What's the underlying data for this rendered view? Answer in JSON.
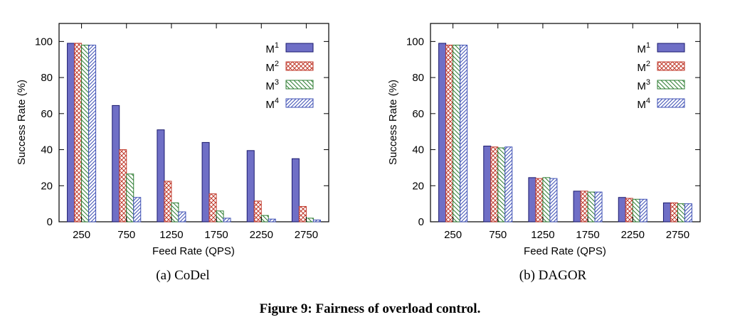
{
  "chart_data": [
    {
      "type": "bar",
      "caption": "(a) CoDel",
      "xlabel": "Feed Rate (QPS)",
      "ylabel": "Success Rate (%)",
      "ylim": [
        0,
        110
      ],
      "yticks": [
        0,
        20,
        40,
        60,
        80,
        100
      ],
      "categories": [
        "250",
        "750",
        "1250",
        "1750",
        "2250",
        "2750"
      ],
      "legend_position": "top-right",
      "series": [
        {
          "name": "M1",
          "label_base": "M",
          "label_sup": "1",
          "pattern": "solid",
          "color": "#6f6fc6",
          "values": [
            99,
            64.5,
            51,
            44,
            39.5,
            35
          ]
        },
        {
          "name": "M2",
          "label_base": "M",
          "label_sup": "2",
          "pattern": "crosshatch",
          "color": "#c0392b",
          "values": [
            99,
            40,
            22.5,
            15.5,
            11.5,
            8.5
          ]
        },
        {
          "name": "M3",
          "label_base": "M",
          "label_sup": "3",
          "pattern": "diagonal-back",
          "color": "#2e7d32",
          "values": [
            98,
            26.5,
            10.5,
            6,
            3.5,
            2
          ]
        },
        {
          "name": "M4",
          "label_base": "M",
          "label_sup": "4",
          "pattern": "diagonal-forward",
          "color": "#3f51b5",
          "values": [
            98,
            13.5,
            5.5,
            2,
            1.5,
            1
          ]
        }
      ]
    },
    {
      "type": "bar",
      "caption": "(b) DAGOR",
      "xlabel": "Feed Rate (QPS)",
      "ylabel": "Success Rate (%)",
      "ylim": [
        0,
        110
      ],
      "yticks": [
        0,
        20,
        40,
        60,
        80,
        100
      ],
      "categories": [
        "250",
        "750",
        "1250",
        "1750",
        "2250",
        "2750"
      ],
      "legend_position": "top-right",
      "series": [
        {
          "name": "M1",
          "label_base": "M",
          "label_sup": "1",
          "pattern": "solid",
          "color": "#6f6fc6",
          "values": [
            99,
            42,
            24.5,
            17,
            13.5,
            10.5
          ]
        },
        {
          "name": "M2",
          "label_base": "M",
          "label_sup": "2",
          "pattern": "crosshatch",
          "color": "#c0392b",
          "values": [
            98,
            41.5,
            24,
            17,
            13,
            10.5
          ]
        },
        {
          "name": "M3",
          "label_base": "M",
          "label_sup": "3",
          "pattern": "diagonal-back",
          "color": "#2e7d32",
          "values": [
            98,
            41,
            24.5,
            16.5,
            12.5,
            10
          ]
        },
        {
          "name": "M4",
          "label_base": "M",
          "label_sup": "4",
          "pattern": "diagonal-forward",
          "color": "#3f51b5",
          "values": [
            98,
            41.5,
            24,
            16.5,
            12.5,
            10
          ]
        }
      ]
    }
  ],
  "figure_caption": "Figure 9: Fairness of overload control."
}
